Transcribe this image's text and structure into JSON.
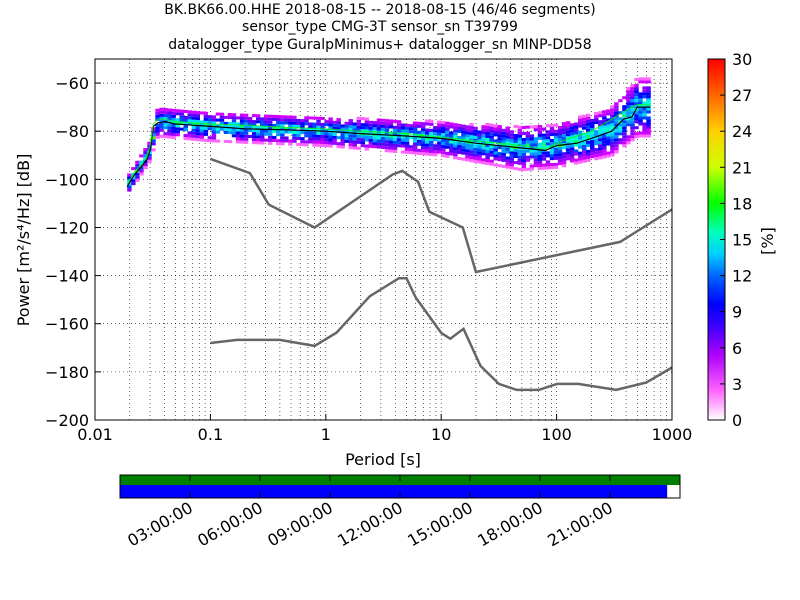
{
  "titles": {
    "line1": "BK.BK66.00.HHE   2018-08-15 -- 2018-08-15  (46/46 segments)",
    "line2": "sensor_type CMG-3T sensor_sn T39799",
    "line3": "datalogger_type GuralpMinimus+ datalogger_sn MINP-DD58"
  },
  "chart_data": [
    {
      "type": "heatmap",
      "name": "ppsd",
      "xlabel": "Period [s]",
      "ylabel": "Power [m²/s⁴/Hz] [dB]",
      "xscale": "log",
      "xlim": [
        0.01,
        1000
      ],
      "ylim": [
        -200,
        -50
      ],
      "xticks": [
        "0.01",
        "0.1",
        "1",
        "10",
        "100",
        "1000"
      ],
      "yticks": [
        "−60",
        "−80",
        "−100",
        "−120",
        "−140",
        "−160",
        "−180",
        "−200"
      ],
      "grid": true,
      "colorbar": {
        "label": "[%]",
        "range": [
          0,
          30
        ],
        "ticks": [
          "0",
          "3",
          "6",
          "9",
          "12",
          "15",
          "18",
          "21",
          "24",
          "27",
          "30"
        ]
      },
      "nhnm": {
        "name": "NHNM",
        "color": "#666666",
        "x": [
          0.1,
          0.22,
          0.32,
          0.8,
          3.8,
          4.6,
          6.3,
          7.9,
          15.4,
          20,
          354.8,
          1000
        ],
        "y": [
          -91.5,
          -97.4,
          -110.5,
          -120,
          -98,
          -96.5,
          -101,
          -113.5,
          -120,
          -138.5,
          -126,
          -112.5
        ]
      },
      "nlnm": {
        "name": "NLNM",
        "color": "#666666",
        "x": [
          0.1,
          0.17,
          0.4,
          0.8,
          1.24,
          2.4,
          4.3,
          5,
          6,
          10,
          12,
          15.6,
          21.9,
          31.6,
          45,
          70,
          101,
          154,
          328,
          600,
          1000
        ],
        "y": [
          -168,
          -166.7,
          -166.7,
          -169.2,
          -163.7,
          -148.6,
          -141.1,
          -141.1,
          -149,
          -163.8,
          -166.2,
          -162.1,
          -177.5,
          -185,
          -187.5,
          -187.5,
          -185,
          -185,
          -187.5,
          -184.4,
          -178.2
        ],
        "mean_curve": {
          "x": [
            0.019,
            0.022,
            0.025,
            0.028,
            0.03,
            0.032,
            0.035,
            0.04,
            0.05,
            0.07,
            0.1,
            0.2,
            0.5,
            1,
            2,
            5,
            10,
            20,
            50,
            80,
            100,
            150,
            200,
            300,
            380,
            450,
            500,
            650
          ],
          "y": [
            -103,
            -98,
            -95,
            -92,
            -88,
            -78,
            -76.5,
            -76,
            -77,
            -77.5,
            -78,
            -79,
            -79.5,
            -80,
            -81,
            -82,
            -83,
            -85,
            -87,
            -88,
            -86,
            -85,
            -83,
            -80,
            -75,
            -74,
            -70,
            -70
          ]
        },
        "mode_curve": {
          "x": [
            0.019,
            0.022,
            0.025,
            0.028,
            0.03,
            0.032,
            0.035,
            0.04,
            0.05,
            0.07,
            0.1,
            0.2,
            0.5,
            1,
            2,
            5,
            10,
            20,
            50,
            80,
            100,
            150,
            200,
            300,
            380,
            450,
            500,
            650
          ],
          "y": [
            -102,
            -97,
            -94,
            -91,
            -86,
            -77,
            -75,
            -75,
            -76,
            -76.5,
            -77,
            -77.5,
            -78.5,
            -79,
            -80,
            -81,
            -82.5,
            -84,
            -86,
            -87.5,
            -85,
            -82,
            -80,
            -75,
            -72,
            -70,
            -69,
            -69
          ]
        }
      },
      "density_bands": {
        "x_start": 0.019,
        "x_end": 650,
        "center_x": [
          0.019,
          0.03,
          0.035,
          0.1,
          1,
          10,
          50,
          100,
          300,
          500,
          650
        ],
        "center_y": [
          -103,
          -88,
          -76,
          -78,
          -80,
          -83,
          -87,
          -86,
          -80,
          -70,
          -70
        ],
        "spread": [
          4,
          4,
          6,
          6,
          6,
          7,
          9,
          9,
          10,
          12,
          12
        ]
      }
    },
    {
      "type": "timeline",
      "name": "data-coverage",
      "tick_labels": [
        "03:00:00",
        "06:00:00",
        "09:00:00",
        "12:00:00",
        "15:00:00",
        "18:00:00",
        "21:00:00"
      ],
      "tick_hours": [
        3,
        6,
        9,
        12,
        15,
        18,
        21
      ],
      "range_hours": [
        0,
        24
      ],
      "top_bar": {
        "color": "#008000",
        "start": 0,
        "end": 24
      },
      "bottom_bar": {
        "color": "#0000ff",
        "start": 0,
        "end": 23.45
      }
    }
  ]
}
